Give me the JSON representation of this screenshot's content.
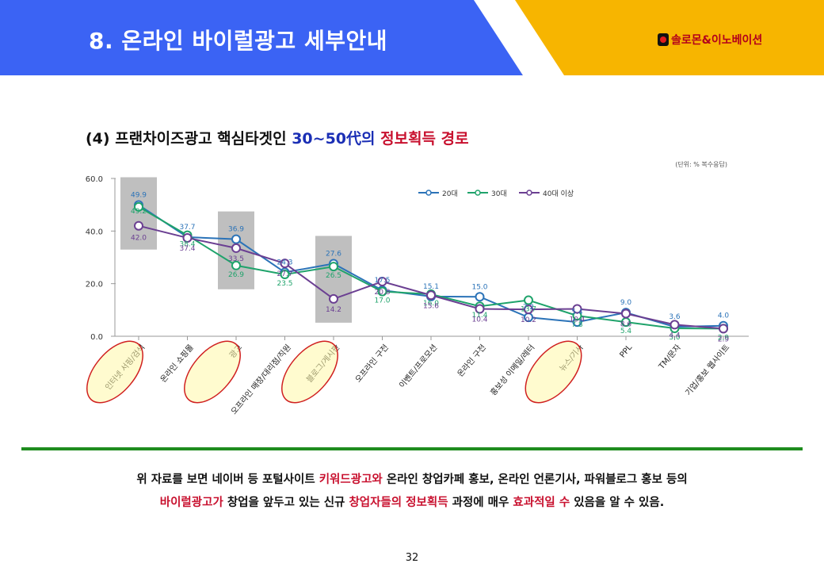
{
  "header": {
    "title": "8. 온라인 바이럴광고 세부안내",
    "logo_text": "솔로몬&이노베이션",
    "colors": {
      "blue": "#3b63f4",
      "yellow": "#f7b500"
    }
  },
  "subtitle": {
    "part1": "(4) 프랜차이즈광고  핵심타겟인 ",
    "part2": "30~50代의",
    "part3": " ",
    "part4": "정보획득 경로"
  },
  "chart_data": {
    "type": "line",
    "unit_note": "(단위: % 복수응답)",
    "ylim": [
      0,
      60
    ],
    "yticks": [
      "0.0",
      "20.0",
      "40.0",
      "60.0"
    ],
    "categories": [
      "인터넷 서핑/검색",
      "온라인 쇼핑몰",
      "광고",
      "오프라인 매장/대리점/직원",
      "블로그/게시판",
      "오프라인 구전",
      "이벤트/프로모션",
      "온라인 구전",
      "홍보성 이메일/레터",
      "뉴스/기사",
      "PPL",
      "TM/문자",
      "기업/홍보 웹사이트"
    ],
    "series": [
      {
        "name": "20대",
        "color": "#2b73b8",
        "values": [
          49.9,
          37.7,
          36.9,
          24.3,
          27.6,
          17.5,
          15.1,
          15.0,
          7.2,
          5.4,
          9.0,
          3.6,
          4.0
        ]
      },
      {
        "name": "30대",
        "color": "#1fa36b",
        "values": [
          49.2,
          38.4,
          26.9,
          23.5,
          26.5,
          17.0,
          16.0,
          11.4,
          13.7,
          7.8,
          5.4,
          3.0,
          2.9
        ]
      },
      {
        "name": "40대 이상",
        "color": "#6b3f92",
        "values": [
          42.0,
          37.4,
          33.5,
          27.7,
          14.2,
          20.8,
          15.6,
          10.4,
          10.2,
          10.4,
          8.6,
          4.4,
          2.9
        ]
      }
    ],
    "highlighted_categories": [
      "인터넷 서핑/검색",
      "광고",
      "블로그/게시판",
      "뉴스/기사"
    ]
  },
  "body": {
    "line1": [
      {
        "t": "위 자료를 보면 네이버 등 포털사이트 ",
        "hl": false
      },
      {
        "t": "키워드광고와",
        "hl": true
      },
      {
        "t": " 온라인 창업카페 홍보, 온라인 언론기사, 파워블로그 홍보 등의",
        "hl": false
      }
    ],
    "line2": [
      {
        "t": "바이럴광고가",
        "hl": true
      },
      {
        "t": " 창업을 앞두고 있는 신규 ",
        "hl": false
      },
      {
        "t": "창업자들의 정보획득",
        "hl": true
      },
      {
        "t": " 과정에 매우 ",
        "hl": false
      },
      {
        "t": "효과적일 수",
        "hl": true
      },
      {
        "t": " 있음을 알 수 있음.",
        "hl": false
      }
    ]
  },
  "page_number": "32"
}
